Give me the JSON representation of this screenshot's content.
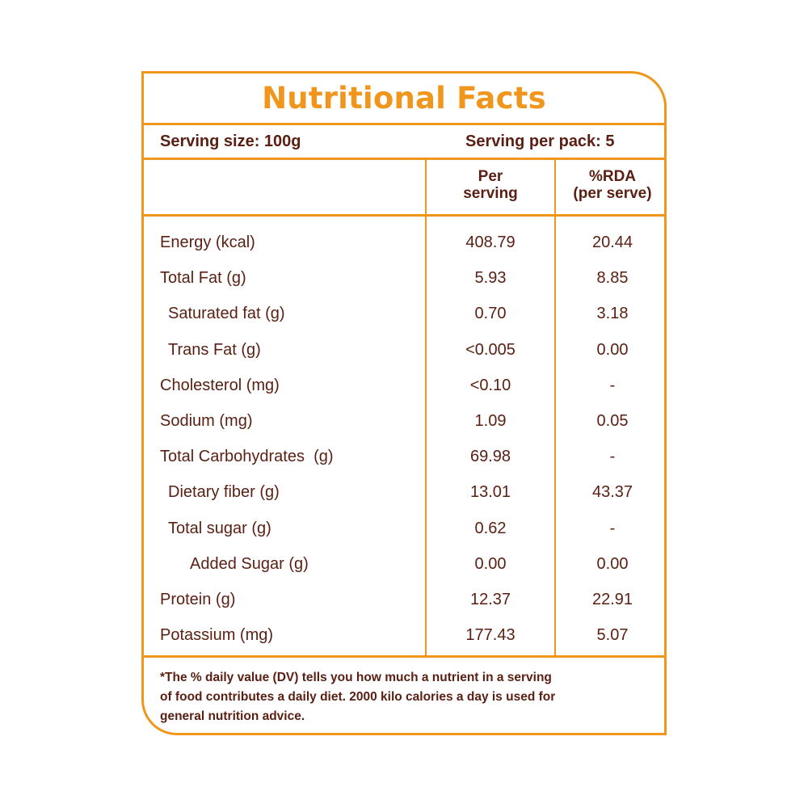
{
  "title": "Nutritional Facts",
  "serving": {
    "size": "Serving size: 100g",
    "per_pack": "Serving per pack: 5"
  },
  "columns": {
    "per_serving": [
      "Per",
      "serving"
    ],
    "rda": [
      "%RDA",
      "(per serve)"
    ]
  },
  "rows": [
    {
      "name": "Energy (kcal)",
      "per_serving": "408.79",
      "rda": "20.44"
    },
    {
      "name": "Total Fat (g)",
      "per_serving": "5.93",
      "rda": "8.85"
    },
    {
      "name": "Saturated fat (g)",
      "per_serving": "0.70",
      "rda": "3.18"
    },
    {
      "name": "Trans Fat (g)",
      "per_serving": "<0.005",
      "rda": "0.00"
    },
    {
      "name": "Cholesterol (mg)",
      "per_serving": "<0.10",
      "rda": "-"
    },
    {
      "name": "Sodium (mg)",
      "per_serving": "1.09",
      "rda": "0.05"
    },
    {
      "name": "Total Carbohydrates  (g)",
      "per_serving": "69.98",
      "rda": "-"
    },
    {
      "name": "Dietary fiber (g)",
      "per_serving": "13.01",
      "rda": "43.37"
    },
    {
      "name": "Total sugar (g)",
      "per_serving": "0.62",
      "rda": "-"
    },
    {
      "name": "Added Sugar (g)",
      "per_serving": "0.00",
      "rda": "0.00"
    },
    {
      "name": "Protein (g)",
      "per_serving": "12.37",
      "rda": "22.91"
    },
    {
      "name": "Potassium (mg)",
      "per_serving": "177.43",
      "rda": "5.07"
    }
  ],
  "footnote": [
    "*The % daily value (DV) tells you how much a nutrient in a serving",
    "of food contributes a daily diet. 2000 kilo calories a day is used for",
    "general nutrition advice."
  ],
  "colors": {
    "accent": "#f0961c",
    "text": "#5a1f12"
  }
}
